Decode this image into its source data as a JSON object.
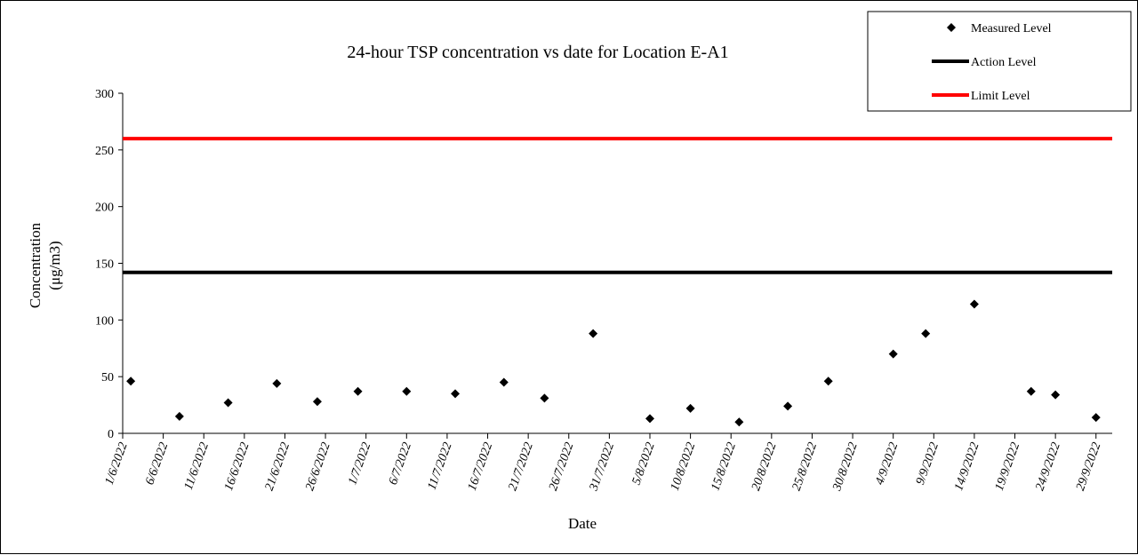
{
  "chart_data": {
    "type": "scatter",
    "title": "24-hour TSP concentration vs date for Location E-A1",
    "xlabel": "Date",
    "ylabel_line1": "Concentration",
    "ylabel_line2": "(μg/m3)",
    "ylim": [
      0,
      300
    ],
    "yticks": [
      0,
      50,
      100,
      150,
      200,
      250,
      300
    ],
    "xlim": [
      "2022-06-01",
      "2022-10-01"
    ],
    "xtick_labels": [
      "1/6/2022",
      "6/6/2022",
      "11/6/2022",
      "16/6/2022",
      "21/6/2022",
      "26/6/2022",
      "1/7/2022",
      "6/7/2022",
      "11/7/2022",
      "16/7/2022",
      "21/7/2022",
      "26/7/2022",
      "31/7/2022",
      "5/8/2022",
      "10/8/2022",
      "15/8/2022",
      "20/8/2022",
      "25/8/2022",
      "30/8/2022",
      "4/9/2022",
      "9/9/2022",
      "14/9/2022",
      "19/9/2022",
      "24/9/2022",
      "29/9/2022"
    ],
    "xtick_dates": [
      "2022-06-01",
      "2022-06-06",
      "2022-06-11",
      "2022-06-16",
      "2022-06-21",
      "2022-06-26",
      "2022-07-01",
      "2022-07-06",
      "2022-07-11",
      "2022-07-16",
      "2022-07-21",
      "2022-07-26",
      "2022-07-31",
      "2022-08-05",
      "2022-08-10",
      "2022-08-15",
      "2022-08-20",
      "2022-08-25",
      "2022-08-30",
      "2022-09-04",
      "2022-09-09",
      "2022-09-14",
      "2022-09-19",
      "2022-09-24",
      "2022-09-29"
    ],
    "grid": false,
    "legend_position": "top-right",
    "series": [
      {
        "name": "Measured Level",
        "marker": "diamond",
        "color": "#000000",
        "points": [
          {
            "x": "2022-06-02",
            "y": 46
          },
          {
            "x": "2022-06-08",
            "y": 15
          },
          {
            "x": "2022-06-14",
            "y": 27
          },
          {
            "x": "2022-06-20",
            "y": 44
          },
          {
            "x": "2022-06-25",
            "y": 28
          },
          {
            "x": "2022-06-30",
            "y": 37
          },
          {
            "x": "2022-07-06",
            "y": 37
          },
          {
            "x": "2022-07-12",
            "y": 35
          },
          {
            "x": "2022-07-18",
            "y": 45
          },
          {
            "x": "2022-07-23",
            "y": 31
          },
          {
            "x": "2022-07-29",
            "y": 88
          },
          {
            "x": "2022-08-05",
            "y": 13
          },
          {
            "x": "2022-08-10",
            "y": 22
          },
          {
            "x": "2022-08-16",
            "y": 10
          },
          {
            "x": "2022-08-22",
            "y": 24
          },
          {
            "x": "2022-08-27",
            "y": 46
          },
          {
            "x": "2022-09-04",
            "y": 70
          },
          {
            "x": "2022-09-08",
            "y": 88
          },
          {
            "x": "2022-09-14",
            "y": 114
          },
          {
            "x": "2022-09-21",
            "y": 37
          },
          {
            "x": "2022-09-24",
            "y": 34
          },
          {
            "x": "2022-09-29",
            "y": 14
          }
        ]
      },
      {
        "name": "Action Level",
        "color": "#000000",
        "value": 142
      },
      {
        "name": "Limit Level",
        "color": "#ff0000",
        "value": 260
      }
    ]
  }
}
